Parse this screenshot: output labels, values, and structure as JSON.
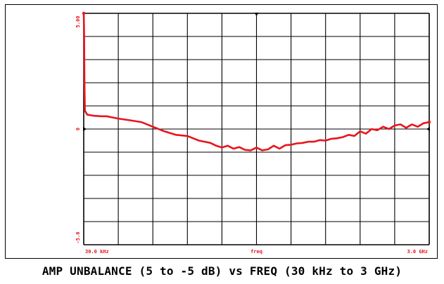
{
  "caption": "AMP UNBALANCE (5 to -5 dB) vs FREQ (30 kHz to 3 GHz)",
  "colors": {
    "trace": "#e8141c",
    "grid": "#000000",
    "labels": "#e8141c",
    "background": "#ffffff"
  },
  "chart_data": {
    "type": "line",
    "title": "AMP UNBALANCE (5 to -5 dB) vs FREQ (30 kHz to 3 GHz)",
    "xlabel": "freq",
    "ylabel": "",
    "x_tick_labels": {
      "start": "30.0 kHz",
      "center": "freq",
      "end": "3.0 GHz"
    },
    "y_tick_labels": {
      "top": "5.00",
      "middle": "0",
      "bottom": "-5.0"
    },
    "ylim": [
      -5,
      5
    ],
    "x_scale": "linear",
    "grid": true,
    "x_divisions": 10,
    "y_divisions": 10,
    "x_unit": "GHz",
    "y_unit": "dB",
    "series": [
      {
        "x": [
          3e-05,
          0.003,
          0.006,
          0.01,
          0.03,
          0.08,
          0.15,
          0.2,
          0.25,
          0.3,
          0.4,
          0.5,
          0.6,
          0.7,
          0.8,
          0.9,
          0.95,
          1.0,
          1.05,
          1.1,
          1.15,
          1.2,
          1.25,
          1.3,
          1.35,
          1.4,
          1.45,
          1.5,
          1.55,
          1.6,
          1.65,
          1.7,
          1.75,
          1.8,
          1.85,
          1.9,
          1.95,
          2.0,
          2.05,
          2.1,
          2.15,
          2.2,
          2.25,
          2.3,
          2.35,
          2.4,
          2.45,
          2.5,
          2.55,
          2.6,
          2.65,
          2.7,
          2.75,
          2.8,
          2.85,
          2.9,
          2.95,
          3.0
        ],
        "y": [
          5.0,
          4.2,
          2.0,
          0.8,
          0.62,
          0.58,
          0.55,
          0.55,
          0.5,
          0.45,
          0.38,
          0.3,
          0.1,
          -0.1,
          -0.25,
          -0.3,
          -0.4,
          -0.5,
          -0.55,
          -0.6,
          -0.72,
          -0.8,
          -0.72,
          -0.85,
          -0.78,
          -0.9,
          -0.92,
          -0.8,
          -0.92,
          -0.88,
          -0.72,
          -0.85,
          -0.7,
          -0.68,
          -0.62,
          -0.6,
          -0.55,
          -0.55,
          -0.48,
          -0.5,
          -0.42,
          -0.4,
          -0.35,
          -0.25,
          -0.3,
          -0.1,
          -0.2,
          0.0,
          -0.05,
          0.1,
          0.0,
          0.15,
          0.2,
          0.05,
          0.2,
          0.1,
          0.25,
          0.3
        ]
      }
    ]
  }
}
